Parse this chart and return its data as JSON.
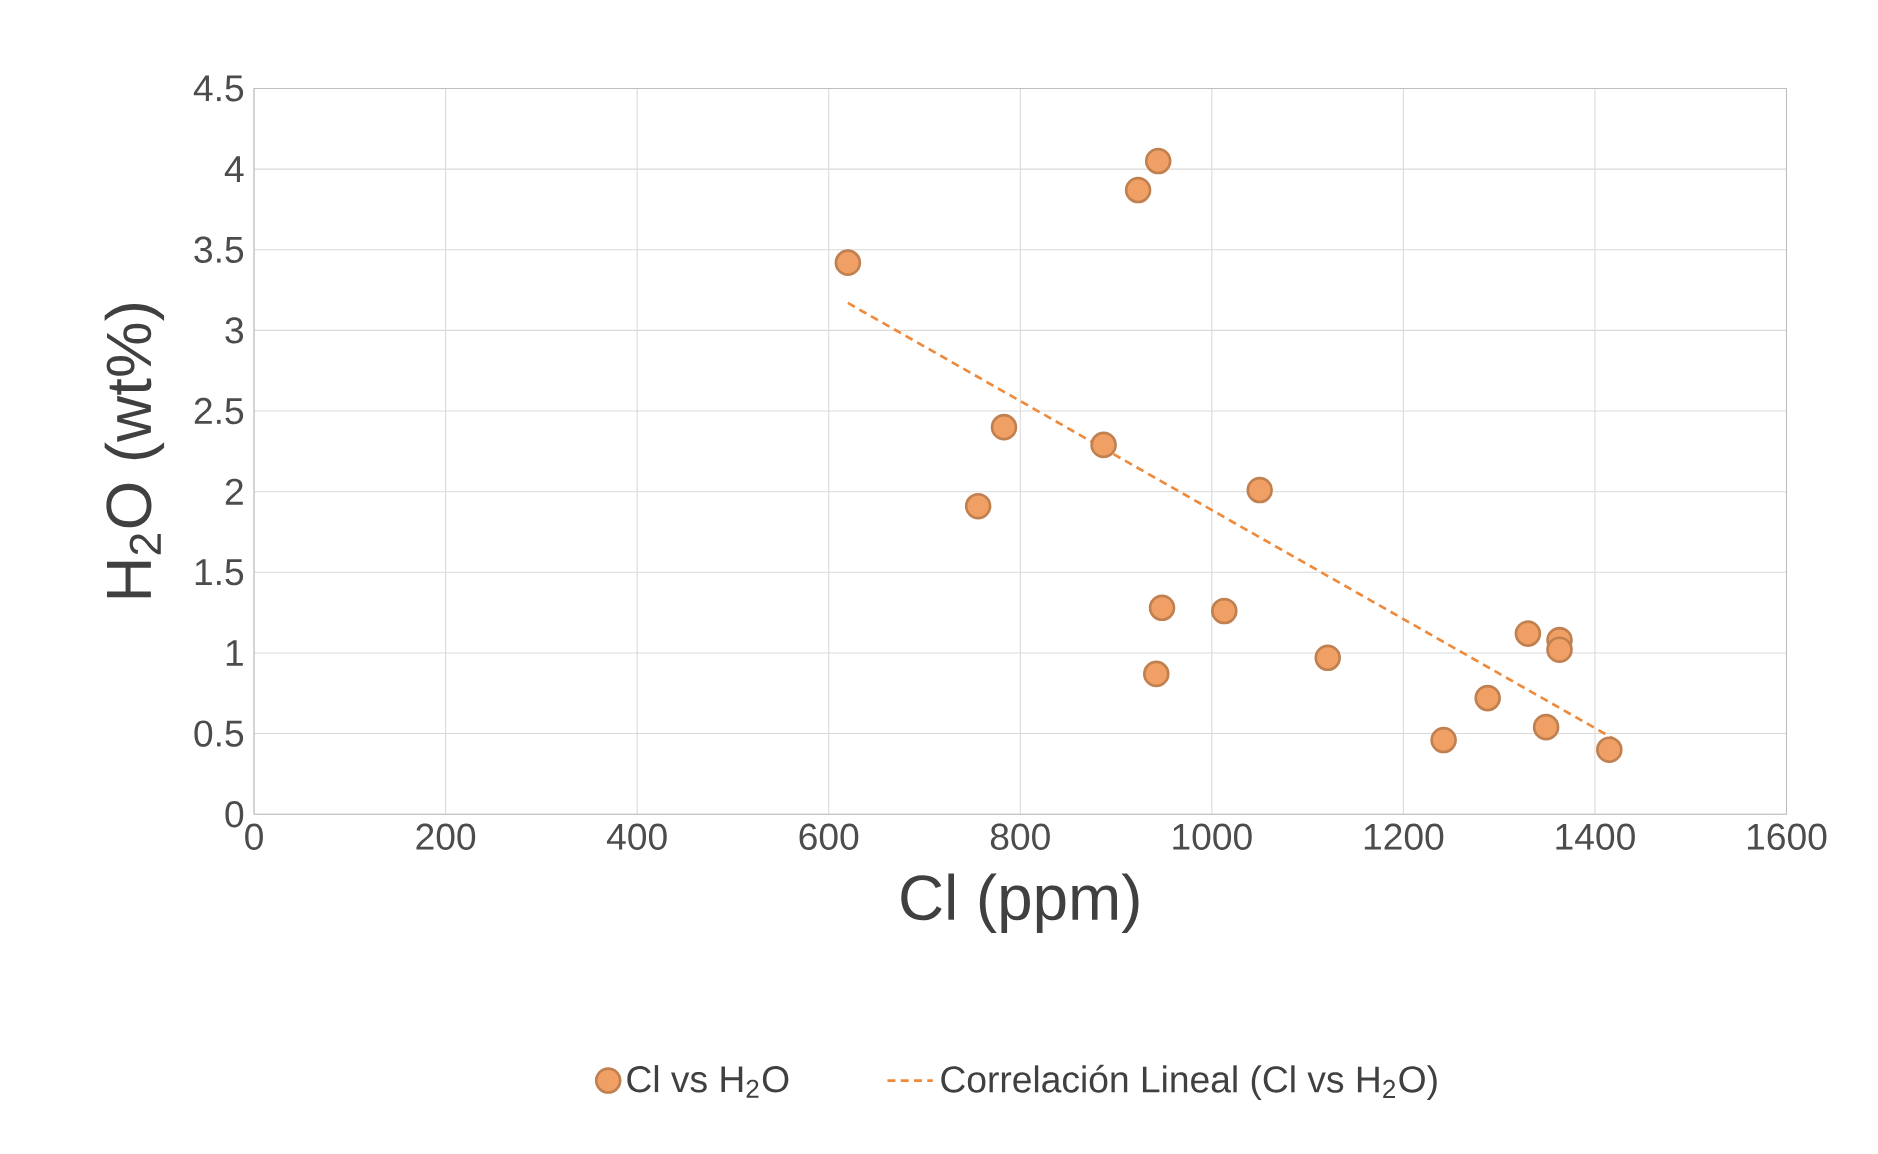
{
  "chart_data": {
    "type": "scatter",
    "xlabel": "Cl (ppm)",
    "ylabel": "H$_{2}$O (wt%)",
    "xlim": [
      0,
      1600
    ],
    "xticks": [
      0,
      200,
      400,
      600,
      800,
      1000,
      1200,
      1400,
      1600
    ],
    "ylim": [
      0,
      4.5
    ],
    "yticks": [
      0,
      0.5,
      1,
      1.5,
      2,
      2.5,
      3,
      3.5,
      4,
      4.5
    ],
    "grid": true,
    "legend": "bottom",
    "series": [
      {
        "name": "Cl vs H$_{2}$O",
        "marker": "circle",
        "color": "#f0a064",
        "x": [
          620,
          944,
          923,
          783,
          887,
          756,
          1050,
          948,
          1013,
          942,
          1121,
          1330,
          1363,
          1363,
          1288,
          1242,
          1349,
          1415
        ],
        "values": [
          3.42,
          4.05,
          3.87,
          2.4,
          2.29,
          1.91,
          2.01,
          1.28,
          1.26,
          0.87,
          0.97,
          1.12,
          1.08,
          1.02,
          0.72,
          0.46,
          0.54,
          0.4
        ]
      },
      {
        "name": "Correlación Lineal (Cl vs H$_{2}$O)",
        "type": "line",
        "line_style": "dashed",
        "marker": "none",
        "color": "#ee8a3c",
        "x": [
          620,
          1422
        ],
        "values": [
          3.17,
          0.46
        ]
      }
    ]
  }
}
